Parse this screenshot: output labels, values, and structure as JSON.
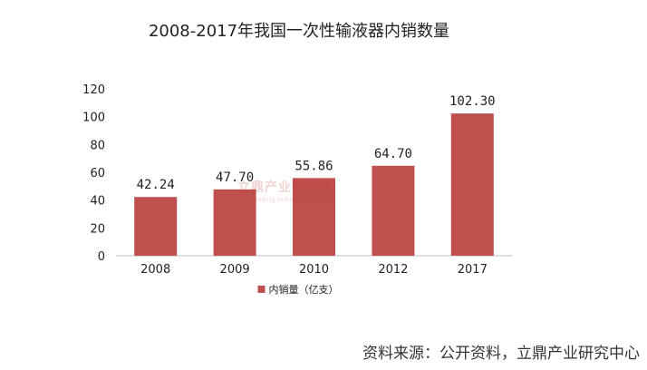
{
  "page": {
    "title": "2008-2017年我国一次性输液器内销数量",
    "source": "资料来源：公开资料，立鼎产业研究中心",
    "watermark": {
      "main": "立鼎产业研究网",
      "sub": "Leading Industry Research"
    }
  },
  "chart_data": {
    "type": "bar",
    "title": "2008-2017年我国一次性输液器内销数量",
    "xlabel": "",
    "ylabel": "",
    "categories": [
      "2008",
      "2009",
      "2010",
      "2012",
      "2017"
    ],
    "series": [
      {
        "name": "内销量（亿支）",
        "values": [
          42.24,
          47.7,
          55.86,
          64.7,
          102.3
        ],
        "labels": [
          "42.24",
          "47.70",
          "55.86",
          "64.70",
          "102.30"
        ]
      }
    ],
    "ylim": [
      0,
      120
    ],
    "yticks": [
      "0",
      "20",
      "40",
      "60",
      "80",
      "100",
      "120"
    ],
    "grid": false,
    "legend_position": "bottom",
    "colors": {
      "bar": "#c0504d",
      "axis": "#bfbfbf",
      "text": "#222222"
    }
  }
}
